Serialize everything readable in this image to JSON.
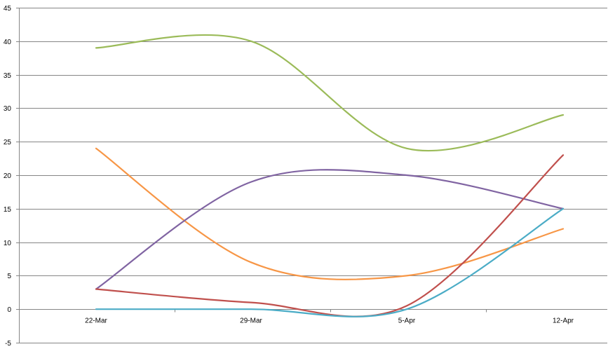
{
  "chart_data": {
    "type": "line",
    "smooth": true,
    "categories": [
      "22-Mar",
      "29-Mar",
      "5-Apr",
      "12-Apr"
    ],
    "ylim": [
      -5,
      45
    ],
    "yticks": [
      "-5",
      "0",
      "5",
      "10",
      "15",
      "20",
      "25",
      "30",
      "35",
      "40",
      "45"
    ],
    "grid": true,
    "legend": "none",
    "series": [
      {
        "color": "#9BBB59",
        "x": [
          "22-Mar",
          "29-Mar",
          "5-Apr",
          "12-Apr"
        ],
        "values": [
          39,
          40,
          24,
          29
        ]
      },
      {
        "color": "#F79646",
        "x": [
          "22-Mar",
          "29-Mar",
          "5-Apr",
          "12-Apr"
        ],
        "values": [
          24,
          7,
          5,
          12
        ]
      },
      {
        "color": "#8064A2",
        "x": [
          "22-Mar",
          "29-Mar",
          "5-Apr",
          "12-Apr"
        ],
        "values": [
          3,
          19,
          20,
          15
        ]
      },
      {
        "color": "#C0504D",
        "x": [
          "22-Mar",
          "29-Mar",
          "5-Apr",
          "12-Apr"
        ],
        "values": [
          3,
          1,
          0.5,
          23
        ]
      },
      {
        "color": "#4BACC6",
        "x": [
          "22-Mar",
          "29-Mar",
          "5-Apr",
          "12-Apr"
        ],
        "values": [
          0,
          0,
          0,
          15
        ]
      }
    ]
  }
}
